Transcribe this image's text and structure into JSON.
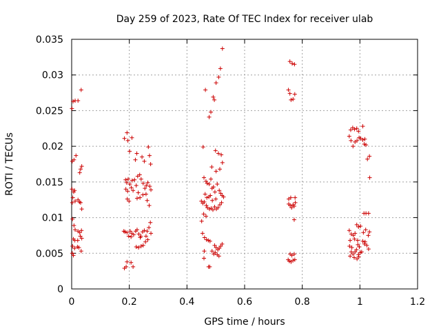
{
  "chart_data": {
    "type": "scatter",
    "title": "Day 259 of 2023, Rate Of TEC Index for receiver ulab",
    "xlabel": "GPS time / hours",
    "ylabel": "ROTI / TECUs",
    "xlim": [
      0,
      1.2
    ],
    "ylim": [
      0,
      0.035
    ],
    "grid": true,
    "marker": "+",
    "marker_color": "#cc0000",
    "x_ticks": [
      {
        "value": 0,
        "label": "0"
      },
      {
        "value": 0.2,
        "label": "0.2"
      },
      {
        "value": 0.4,
        "label": "0.4"
      },
      {
        "value": 0.6,
        "label": "0.6"
      },
      {
        "value": 0.8,
        "label": "0.8"
      },
      {
        "value": 1.0,
        "label": "1"
      },
      {
        "value": 1.2,
        "label": "1.2"
      }
    ],
    "y_ticks": [
      {
        "value": 0,
        "label": "0"
      },
      {
        "value": 0.005,
        "label": "0.005"
      },
      {
        "value": 0.01,
        "label": "0.01"
      },
      {
        "value": 0.015,
        "label": "0.015"
      },
      {
        "value": 0.02,
        "label": "0.02"
      },
      {
        "value": 0.025,
        "label": "0.025"
      },
      {
        "value": 0.03,
        "label": "0.03"
      },
      {
        "value": 0.035,
        "label": "0.035"
      }
    ],
    "series": [
      {
        "name": "ROTI",
        "points": [
          [
            0.001,
            0.0253
          ],
          [
            0.005,
            0.0263
          ],
          [
            0.012,
            0.0264
          ],
          [
            0.022,
            0.0264
          ],
          [
            0.033,
            0.0279
          ],
          [
            0.002,
            0.0179
          ],
          [
            0.008,
            0.0181
          ],
          [
            0.015,
            0.0187
          ],
          [
            0.028,
            0.0163
          ],
          [
            0.031,
            0.0168
          ],
          [
            0.035,
            0.0172
          ],
          [
            0.001,
            0.014
          ],
          [
            0.007,
            0.0136
          ],
          [
            0.01,
            0.0138
          ],
          [
            0.004,
            0.0128
          ],
          [
            0.012,
            0.0123
          ],
          [
            0.002,
            0.0121
          ],
          [
            0.022,
            0.0125
          ],
          [
            0.027,
            0.0122
          ],
          [
            0.031,
            0.0121
          ],
          [
            0.035,
            0.0112
          ],
          [
            0.003,
            0.0098
          ],
          [
            0.008,
            0.0089
          ],
          [
            0.012,
            0.0083
          ],
          [
            0.022,
            0.0081
          ],
          [
            0.028,
            0.0079
          ],
          [
            0.034,
            0.0082
          ],
          [
            0.006,
            0.007
          ],
          [
            0.011,
            0.0068
          ],
          [
            0.021,
            0.0068
          ],
          [
            0.03,
            0.0074
          ],
          [
            0.035,
            0.0071
          ],
          [
            0.003,
            0.006
          ],
          [
            0.01,
            0.0057
          ],
          [
            0.02,
            0.0059
          ],
          [
            0.025,
            0.0058
          ],
          [
            0.033,
            0.0053
          ],
          [
            0.002,
            0.005
          ],
          [
            0.006,
            0.0047
          ],
          [
            0.183,
            0.0211
          ],
          [
            0.192,
            0.0219
          ],
          [
            0.195,
            0.0208
          ],
          [
            0.209,
            0.0212
          ],
          [
            0.201,
            0.0193
          ],
          [
            0.221,
            0.0181
          ],
          [
            0.226,
            0.019
          ],
          [
            0.244,
            0.0185
          ],
          [
            0.252,
            0.0179
          ],
          [
            0.266,
            0.0199
          ],
          [
            0.27,
            0.0187
          ],
          [
            0.274,
            0.0175
          ],
          [
            0.187,
            0.0153
          ],
          [
            0.191,
            0.0149
          ],
          [
            0.196,
            0.0154
          ],
          [
            0.202,
            0.0147
          ],
          [
            0.207,
            0.0142
          ],
          [
            0.21,
            0.0152
          ],
          [
            0.218,
            0.0153
          ],
          [
            0.224,
            0.0145
          ],
          [
            0.229,
            0.0158
          ],
          [
            0.236,
            0.016
          ],
          [
            0.241,
            0.0154
          ],
          [
            0.248,
            0.0148
          ],
          [
            0.254,
            0.0141
          ],
          [
            0.259,
            0.0145
          ],
          [
            0.264,
            0.0149
          ],
          [
            0.271,
            0.0144
          ],
          [
            0.275,
            0.0139
          ],
          [
            0.188,
            0.014
          ],
          [
            0.194,
            0.0137
          ],
          [
            0.213,
            0.0138
          ],
          [
            0.231,
            0.0135
          ],
          [
            0.247,
            0.0132
          ],
          [
            0.258,
            0.0133
          ],
          [
            0.193,
            0.0126
          ],
          [
            0.199,
            0.0123
          ],
          [
            0.227,
            0.0127
          ],
          [
            0.237,
            0.0128
          ],
          [
            0.262,
            0.0124
          ],
          [
            0.269,
            0.0117
          ],
          [
            0.181,
            0.0081
          ],
          [
            0.185,
            0.008
          ],
          [
            0.192,
            0.0079
          ],
          [
            0.203,
            0.0081
          ],
          [
            0.209,
            0.0078
          ],
          [
            0.215,
            0.0076
          ],
          [
            0.222,
            0.0081
          ],
          [
            0.227,
            0.0083
          ],
          [
            0.233,
            0.0077
          ],
          [
            0.24,
            0.0074
          ],
          [
            0.246,
            0.008
          ],
          [
            0.252,
            0.0082
          ],
          [
            0.258,
            0.0074
          ],
          [
            0.262,
            0.0081
          ],
          [
            0.268,
            0.0086
          ],
          [
            0.273,
            0.0093
          ],
          [
            0.275,
            0.0078
          ],
          [
            0.198,
            0.0074
          ],
          [
            0.206,
            0.0073
          ],
          [
            0.238,
            0.0072
          ],
          [
            0.264,
            0.0069
          ],
          [
            0.224,
            0.0059
          ],
          [
            0.232,
            0.0058
          ],
          [
            0.241,
            0.006
          ],
          [
            0.248,
            0.0061
          ],
          [
            0.256,
            0.0066
          ],
          [
            0.192,
            0.0038
          ],
          [
            0.206,
            0.0037
          ],
          [
            0.213,
            0.0031
          ],
          [
            0.183,
            0.0029
          ],
          [
            0.189,
            0.0031
          ],
          [
            0.464,
            0.0279
          ],
          [
            0.495,
            0.0265
          ],
          [
            0.501,
            0.0289
          ],
          [
            0.51,
            0.0297
          ],
          [
            0.516,
            0.0309
          ],
          [
            0.523,
            0.0337
          ],
          [
            0.477,
            0.0241
          ],
          [
            0.483,
            0.0248
          ],
          [
            0.491,
            0.0269
          ],
          [
            0.456,
            0.0199
          ],
          [
            0.499,
            0.0194
          ],
          [
            0.509,
            0.019
          ],
          [
            0.519,
            0.0188
          ],
          [
            0.523,
            0.0177
          ],
          [
            0.486,
            0.0171
          ],
          [
            0.501,
            0.0165
          ],
          [
            0.514,
            0.0168
          ],
          [
            0.459,
            0.0156
          ],
          [
            0.466,
            0.0151
          ],
          [
            0.47,
            0.0148
          ],
          [
            0.477,
            0.0147
          ],
          [
            0.483,
            0.0154
          ],
          [
            0.487,
            0.0141
          ],
          [
            0.492,
            0.0143
          ],
          [
            0.497,
            0.0136
          ],
          [
            0.505,
            0.0147
          ],
          [
            0.512,
            0.0138
          ],
          [
            0.517,
            0.0134
          ],
          [
            0.522,
            0.0131
          ],
          [
            0.527,
            0.0129
          ],
          [
            0.463,
            0.0133
          ],
          [
            0.469,
            0.0128
          ],
          [
            0.476,
            0.0129
          ],
          [
            0.481,
            0.0131
          ],
          [
            0.488,
            0.0124
          ],
          [
            0.5,
            0.0126
          ],
          [
            0.45,
            0.0123
          ],
          [
            0.455,
            0.012
          ],
          [
            0.46,
            0.0122
          ],
          [
            0.467,
            0.0117
          ],
          [
            0.471,
            0.0114
          ],
          [
            0.478,
            0.0112
          ],
          [
            0.484,
            0.0113
          ],
          [
            0.49,
            0.0111
          ],
          [
            0.496,
            0.0115
          ],
          [
            0.502,
            0.0112
          ],
          [
            0.508,
            0.0114
          ],
          [
            0.514,
            0.0118
          ],
          [
            0.52,
            0.0121
          ],
          [
            0.451,
            0.0095
          ],
          [
            0.458,
            0.0105
          ],
          [
            0.466,
            0.0102
          ],
          [
            0.454,
            0.0078
          ],
          [
            0.461,
            0.0072
          ],
          [
            0.468,
            0.0069
          ],
          [
            0.474,
            0.0068
          ],
          [
            0.48,
            0.0067
          ],
          [
            0.496,
            0.0061
          ],
          [
            0.501,
            0.0058
          ],
          [
            0.507,
            0.0055
          ],
          [
            0.512,
            0.0057
          ],
          [
            0.517,
            0.006
          ],
          [
            0.522,
            0.0063
          ],
          [
            0.46,
            0.0053
          ],
          [
            0.487,
            0.0053
          ],
          [
            0.493,
            0.0049
          ],
          [
            0.498,
            0.0051
          ],
          [
            0.505,
            0.0048
          ],
          [
            0.511,
            0.0046
          ],
          [
            0.459,
            0.0043
          ],
          [
            0.475,
            0.0031
          ],
          [
            0.479,
            0.0031
          ],
          [
            0.757,
            0.0319
          ],
          [
            0.765,
            0.0316
          ],
          [
            0.773,
            0.0315
          ],
          [
            0.752,
            0.0279
          ],
          [
            0.757,
            0.0274
          ],
          [
            0.761,
            0.0265
          ],
          [
            0.768,
            0.0266
          ],
          [
            0.774,
            0.0273
          ],
          [
            0.753,
            0.0126
          ],
          [
            0.76,
            0.0128
          ],
          [
            0.775,
            0.0128
          ],
          [
            0.753,
            0.0119
          ],
          [
            0.758,
            0.0117
          ],
          [
            0.763,
            0.0114
          ],
          [
            0.768,
            0.0118
          ],
          [
            0.772,
            0.0116
          ],
          [
            0.776,
            0.0121
          ],
          [
            0.772,
            0.0097
          ],
          [
            0.758,
            0.0049
          ],
          [
            0.764,
            0.0047
          ],
          [
            0.772,
            0.0049
          ],
          [
            0.751,
            0.0041
          ],
          [
            0.755,
            0.0039
          ],
          [
            0.761,
            0.0038
          ],
          [
            0.768,
            0.004
          ],
          [
            0.774,
            0.0041
          ],
          [
            0.968,
            0.0223
          ],
          [
            0.975,
            0.0226
          ],
          [
            0.981,
            0.0224
          ],
          [
            0.989,
            0.0225
          ],
          [
            0.995,
            0.0221
          ],
          [
            1.01,
            0.0228
          ],
          [
            0.963,
            0.0214
          ],
          [
            0.969,
            0.0208
          ],
          [
            0.983,
            0.0206
          ],
          [
            0.99,
            0.0208
          ],
          [
            0.997,
            0.0212
          ],
          [
            1.003,
            0.0211
          ],
          [
            1.01,
            0.0209
          ],
          [
            1.017,
            0.021
          ],
          [
            1.015,
            0.0203
          ],
          [
            1.021,
            0.0202
          ],
          [
            0.976,
            0.02
          ],
          [
            1.026,
            0.0182
          ],
          [
            1.033,
            0.0186
          ],
          [
            1.034,
            0.0156
          ],
          [
            1.014,
            0.0106
          ],
          [
            1.021,
            0.0106
          ],
          [
            1.03,
            0.0106
          ],
          [
            0.989,
            0.009
          ],
          [
            0.995,
            0.0087
          ],
          [
            1.002,
            0.0088
          ],
          [
            1.012,
            0.0079
          ],
          [
            1.02,
            0.0083
          ],
          [
            0.963,
            0.0082
          ],
          [
            0.97,
            0.0077
          ],
          [
            0.977,
            0.0075
          ],
          [
            0.983,
            0.0078
          ],
          [
            1.033,
            0.008
          ],
          [
            1.029,
            0.0075
          ],
          [
            0.966,
            0.0068
          ],
          [
            0.981,
            0.007
          ],
          [
            0.992,
            0.0068
          ],
          [
            1.01,
            0.0067
          ],
          [
            1.018,
            0.0066
          ],
          [
            1.024,
            0.0061
          ],
          [
            0.964,
            0.006
          ],
          [
            0.972,
            0.0058
          ],
          [
            0.993,
            0.0062
          ],
          [
            0.998,
            0.0059
          ],
          [
            1.016,
            0.0063
          ],
          [
            1.03,
            0.0056
          ],
          [
            0.97,
            0.0052
          ],
          [
            0.976,
            0.0049
          ],
          [
            0.983,
            0.0052
          ],
          [
            0.988,
            0.0055
          ],
          [
            0.995,
            0.0048
          ],
          [
            1.001,
            0.0051
          ],
          [
            1.006,
            0.0052
          ],
          [
            0.966,
            0.0046
          ],
          [
            0.98,
            0.0044
          ],
          [
            0.99,
            0.0042
          ],
          [
            0.996,
            0.0045
          ]
        ]
      }
    ]
  }
}
